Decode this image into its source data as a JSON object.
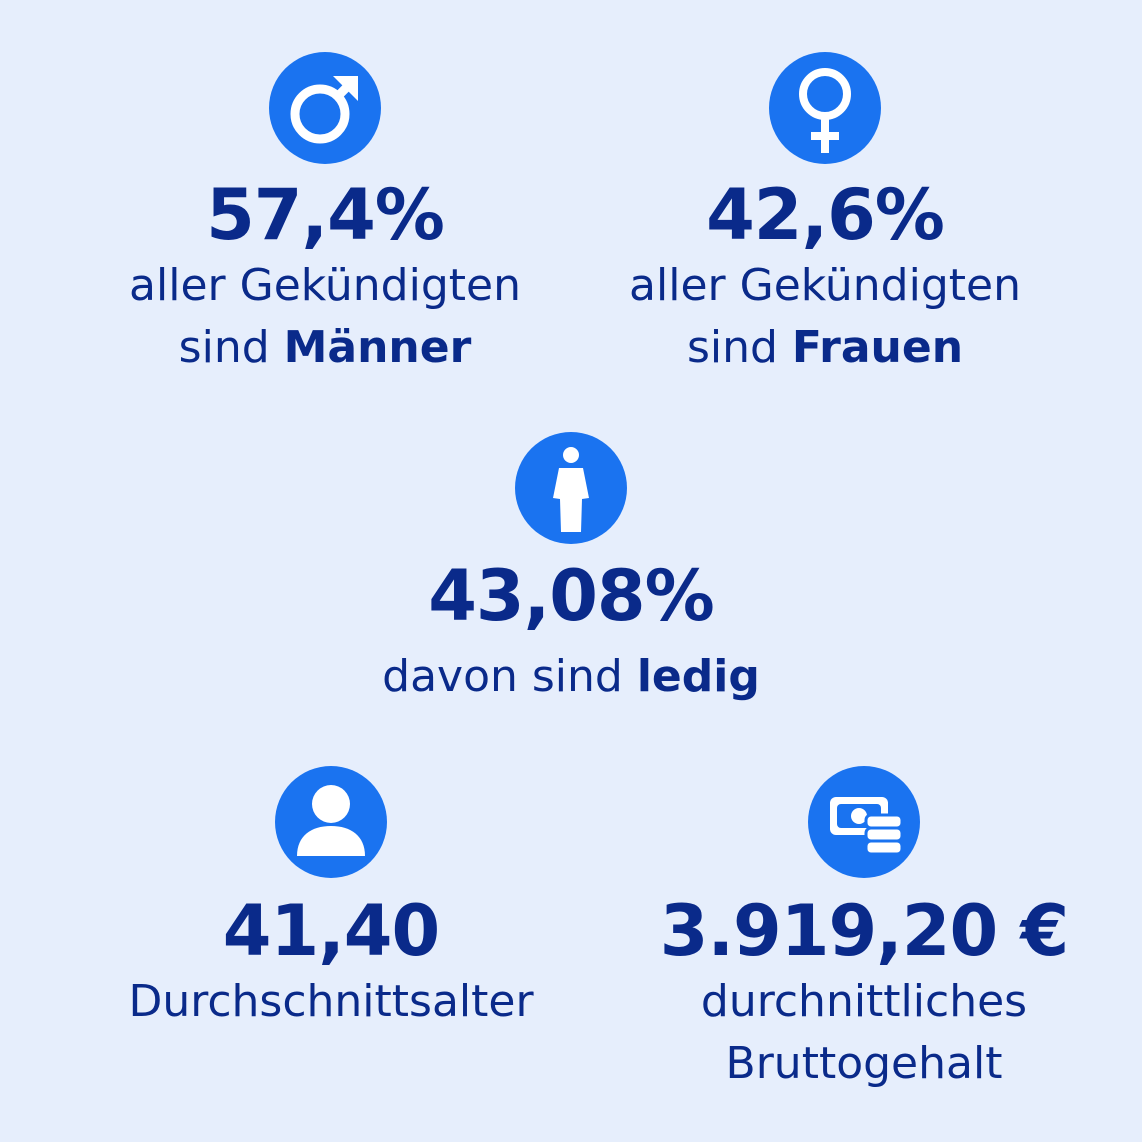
{
  "colors": {
    "background": "#e6eefc",
    "icon_circle": "#1a73f0",
    "text": "#0a2a8a"
  },
  "stats": {
    "men": {
      "icon": "male-symbol-icon",
      "value": "57,4%",
      "line1": "aller Gekündigten",
      "line2_prefix": "sind ",
      "line2_bold": "Männer"
    },
    "women": {
      "icon": "female-symbol-icon",
      "value": "42,6%",
      "line1": "aller Gekündigten",
      "line2_prefix": "sind ",
      "line2_bold": "Frauen"
    },
    "single": {
      "icon": "single-person-icon",
      "value": "43,08%",
      "line1_prefix": "davon sind ",
      "line1_bold": "ledig"
    },
    "age": {
      "icon": "user-avatar-icon",
      "value": "41,40",
      "line1": "Durchschnittsalter"
    },
    "salary": {
      "icon": "money-coins-icon",
      "value": "3.919,20 €",
      "line1": "durchnittliches",
      "line2": "Bruttogehalt"
    }
  }
}
